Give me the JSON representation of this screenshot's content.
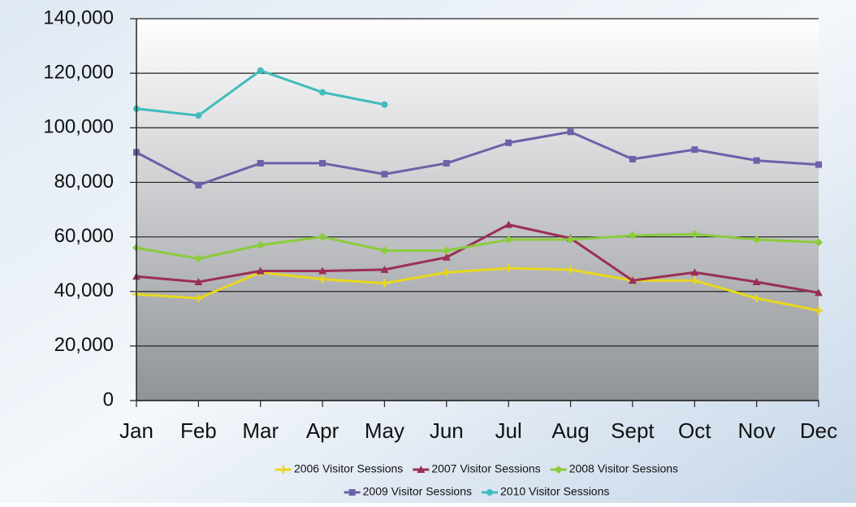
{
  "chart_data": {
    "type": "line",
    "categories": [
      "Jan",
      "Feb",
      "Mar",
      "Apr",
      "May",
      "Jun",
      "Jul",
      "Aug",
      "Sept",
      "Oct",
      "Nov",
      "Dec"
    ],
    "series": [
      {
        "name": "2006 Visitor Sessions",
        "color": "#e8d81c",
        "marker": "plus",
        "values": [
          39000,
          37500,
          47000,
          44500,
          43000,
          47000,
          48500,
          48000,
          44000,
          44000,
          37500,
          33000
        ]
      },
      {
        "name": "2007 Visitor Sessions",
        "color": "#9b2f55",
        "marker": "triangle",
        "values": [
          45500,
          43500,
          47500,
          47500,
          48000,
          52500,
          64500,
          59500,
          44000,
          47000,
          43500,
          39500
        ]
      },
      {
        "name": "2008 Visitor Sessions",
        "color": "#8ccb3c",
        "marker": "diamond",
        "values": [
          56000,
          52000,
          57000,
          60000,
          55000,
          55000,
          59000,
          59000,
          60500,
          61000,
          59000,
          58000
        ]
      },
      {
        "name": "2009 Visitor Sessions",
        "color": "#6b62a8",
        "marker": "square",
        "values": [
          91000,
          79000,
          87000,
          87000,
          83000,
          87000,
          94500,
          98500,
          88500,
          92000,
          88000,
          86500
        ]
      },
      {
        "name": "2010 Visitor Sessions",
        "color": "#3fbcbc",
        "marker": "circle",
        "values": [
          107000,
          104500,
          121000,
          113000,
          108500,
          null,
          null,
          null,
          null,
          null,
          null,
          null
        ]
      }
    ],
    "ylim": [
      0,
      140000
    ],
    "yticks": [
      0,
      {
        "value": 20000,
        "label": "20,000"
      },
      {
        "value": 40000,
        "label": "40,000"
      },
      {
        "value": 60000,
        "label": "60,000"
      },
      {
        "value": 80000,
        "label": "80,000"
      },
      {
        "value": 100000,
        "label": "100,000"
      },
      {
        "value": 120000,
        "label": "120,000"
      },
      {
        "value": 140000,
        "label": "140,000"
      }
    ],
    "grid": true
  }
}
